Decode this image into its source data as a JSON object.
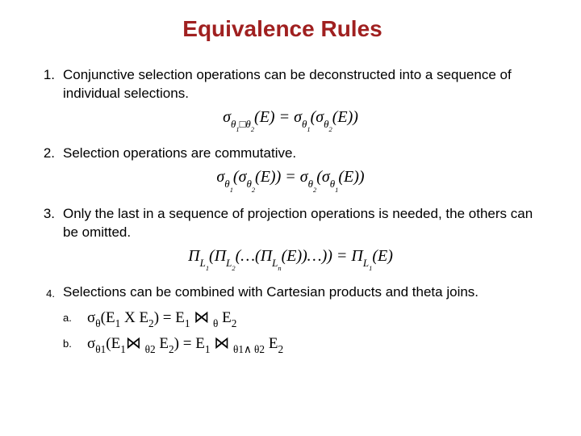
{
  "title": "Equivalence Rules",
  "title_color": "#a02020",
  "background_color": "#ffffff",
  "text_color": "#000000",
  "body_fontsize": 17,
  "title_fontsize": 28,
  "formula_fontsize": 20,
  "rules": [
    {
      "num": "1.",
      "text": "Conjunctive selection operations can be deconstructed into a sequence of individual selections.",
      "formula_html": "σ<span class='sub'>θ<span class='sub'>1</span>□θ<span class='sub'>2</span></span>(E) = σ<span class='sub'>θ<span class='sub'>1</span></span>(σ<span class='sub'>θ<span class='sub'>2</span></span>(E))"
    },
    {
      "num": "2.",
      "text": "Selection operations are commutative.",
      "formula_html": "σ<span class='sub'>θ<span class='sub'>1</span></span>(σ<span class='sub'>θ<span class='sub'>2</span></span>(E)) = σ<span class='sub'>θ<span class='sub'>2</span></span>(σ<span class='sub'>θ<span class='sub'>1</span></span>(E))"
    },
    {
      "num": "3.",
      "text": "Only the last in a sequence of projection operations is needed, the others can be omitted.",
      "formula_html": "Π<span class='sub'>L<span class='sub'>1</span></span>(Π<span class='sub'>L<span class='sub'>2</span></span>(&#x2026;(Π<span class='sub'>L<span class='sub'>n</span></span>(E))&#x2026;)) = Π<span class='sub'>L<span class='sub'>1</span></span>(E)"
    },
    {
      "num": "4.",
      "text": "Selections can be combined with Cartesian products and theta joins.",
      "subitems": [
        {
          "letter": "a.",
          "html": "σ<span class='sm'>θ</span>(E<span class='sm'>1</span> X E<span class='sm'>2</span>) =  E<span class='sm'>1</span> <span class='join'>⋈</span> <span class='sm'>θ</span> E<span class='sm'>2</span>"
        },
        {
          "letter": "b.",
          "html": "σ<span class='sm'>θ1</span>(E<span class='sm'>1</span><span class='join'>⋈</span> <span class='sm'>θ2</span> E<span class='sm'>2</span>) =  E<span class='sm'>1</span> <span class='join'>⋈</span> <span class='sm'>θ1∧ θ2</span> E<span class='sm'>2</span>"
        }
      ]
    }
  ]
}
